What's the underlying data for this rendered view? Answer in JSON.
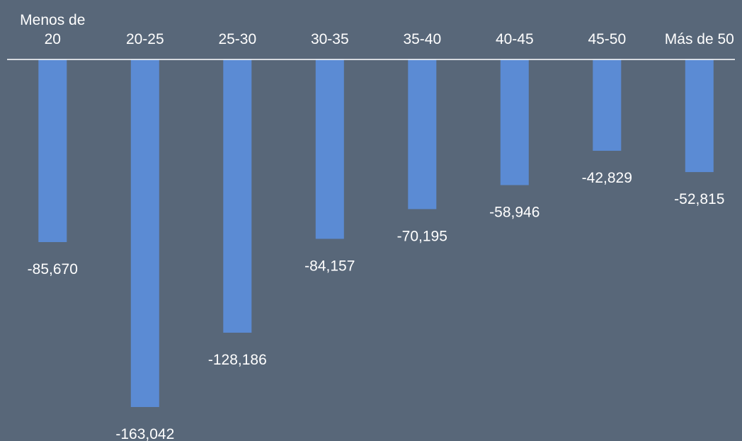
{
  "colors": {
    "background": "#586779",
    "bar": "#5B8BD4",
    "axis": "#ffffff",
    "text": "#ffffff"
  },
  "chart_data": {
    "type": "bar",
    "title": "",
    "xlabel": "",
    "ylabel": "",
    "categories": [
      "Menos de 20",
      "20-25",
      "25-30",
      "30-35",
      "35-40",
      "40-45",
      "45-50",
      "Más de 50"
    ],
    "category_label_lines": [
      [
        "Menos de",
        "20"
      ],
      [
        "20-25"
      ],
      [
        "25-30"
      ],
      [
        "30-35"
      ],
      [
        "35-40"
      ],
      [
        "40-45"
      ],
      [
        "45-50"
      ],
      [
        "Más de 50"
      ]
    ],
    "values": [
      -85670,
      -163042,
      -128186,
      -84157,
      -70195,
      -58946,
      -42829,
      -52815
    ],
    "data_labels": [
      "-85,670",
      "-163,042",
      "-128,186",
      "-84,157",
      "-70,195",
      "-58,946",
      "-42,829",
      "-52,815"
    ],
    "ylim": [
      -163042,
      0
    ],
    "grid": false,
    "legend": false,
    "x_axis_position": "top"
  }
}
